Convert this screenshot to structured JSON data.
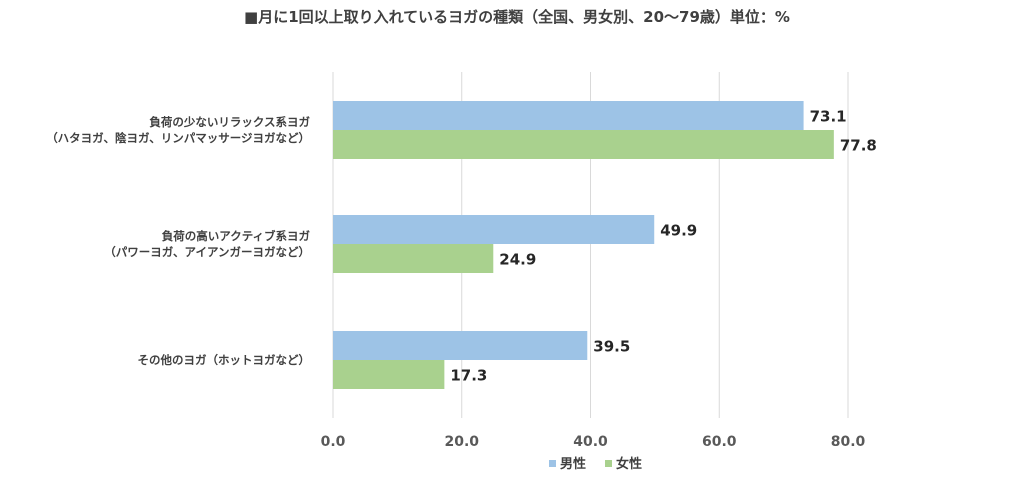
{
  "chart_data": {
    "type": "bar",
    "orientation": "horizontal",
    "title": "■月に1回以上取り入れているヨガの種類（全国、男女別、20～79歳）単位：%",
    "categories": [
      [
        "負荷の少ないリラックス系ヨガ",
        "（ハタヨガ、陰ヨガ、リンパマッサージヨガなど）"
      ],
      [
        "負荷の高いアクティブ系ヨガ",
        "（パワーヨガ、アイアンガーヨガなど）"
      ],
      [
        "その他のヨガ（ホットヨガなど）"
      ]
    ],
    "series": [
      {
        "name": "男性",
        "color": "#9dc3e6",
        "values": [
          73.1,
          49.9,
          39.5
        ]
      },
      {
        "name": "女性",
        "color": "#a9d18e",
        "values": [
          77.8,
          24.9,
          17.3
        ]
      }
    ],
    "xlim": [
      0,
      80
    ],
    "xticks": [
      "0.0",
      "20.0",
      "40.0",
      "60.0",
      "80.0"
    ],
    "value_format": "0.0",
    "grid": true,
    "legend_position": "bottom"
  }
}
